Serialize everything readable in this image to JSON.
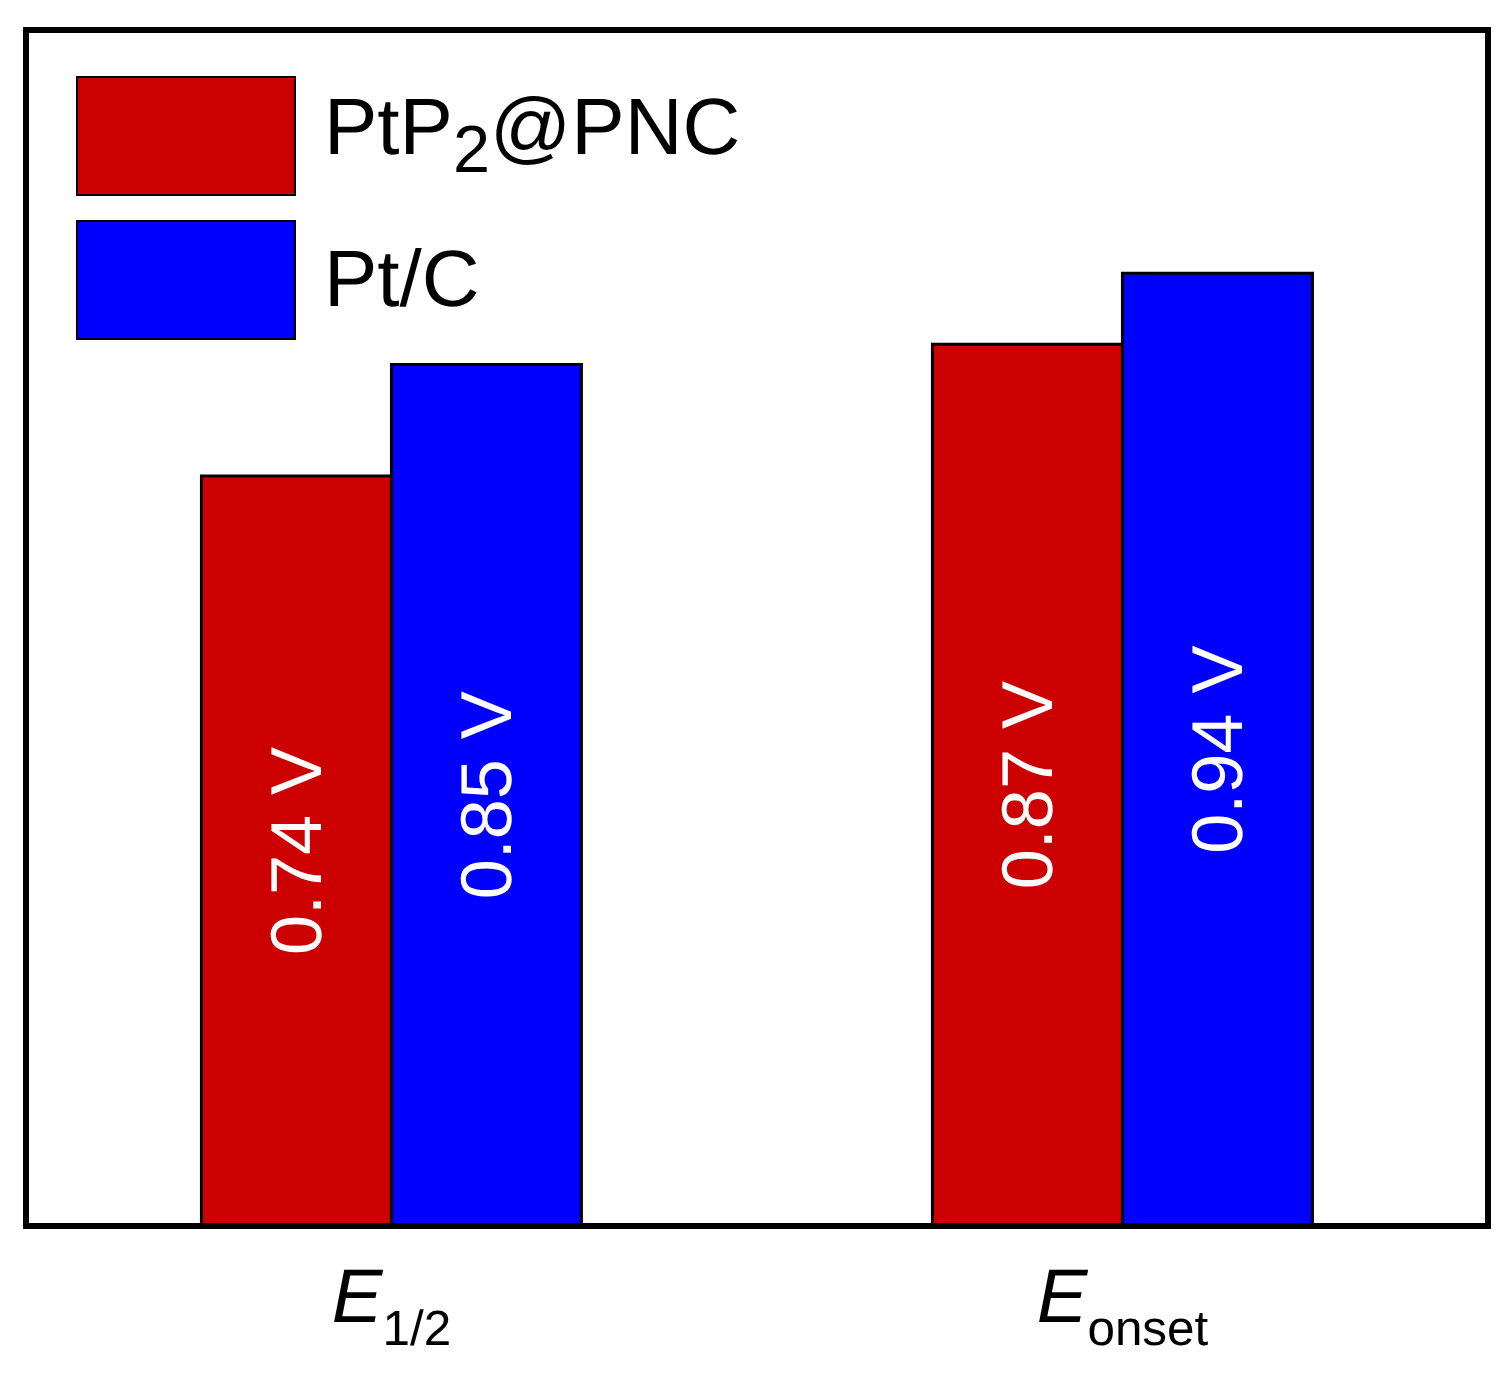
{
  "chart_data": {
    "type": "bar",
    "categories": [
      "E$_{1/2}$",
      "E$_{onset}$"
    ],
    "series": [
      {
        "name": "PtP$_{2}$@PNC",
        "color": "#cc0000",
        "values": [
          0.74,
          0.87
        ],
        "value_labels": [
          "0.74 V",
          "0.87 V"
        ]
      },
      {
        "name": "Pt/C",
        "color": "#0000ff",
        "values": [
          0.85,
          0.94
        ],
        "value_labels": [
          "0.85 V",
          "0.94 V"
        ]
      }
    ],
    "ylim": [
      0,
      1.18
    ],
    "tick_labels": "x",
    "legend": "top left",
    "grid": false
  }
}
